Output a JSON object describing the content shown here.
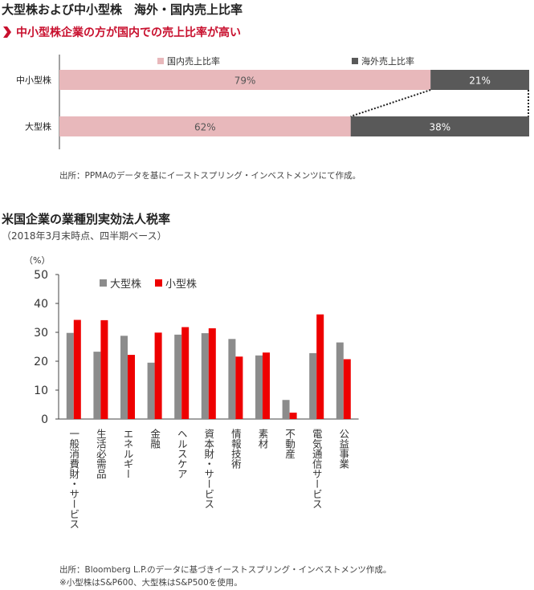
{
  "section1": {
    "title": "大型株および中小型株　海外・国内売上比率",
    "subtitle": "中小型株企業の方が国内での売上比率が高い",
    "source": "出所：PPMAのデータを基にイーストスプリング・インベストメンツにて作成。"
  },
  "section2": {
    "title": "米国企業の業種別実効法人税率",
    "subtitle": "（2018年3月末時点、四半期ベース）",
    "source": "出所：Bloomberg L.P.のデータに基づきイーストスプリング・インベストメンツ作成。",
    "note": "※小型株はS&P600、大型株はS&P500を使用。"
  },
  "colors": {
    "domestic": "#e8b8bb",
    "overseas": "#595959",
    "large": "#8c8c8c",
    "small": "#ee0000",
    "accent": "#c8102e"
  },
  "chart_data": [
    {
      "type": "bar",
      "orientation": "horizontal",
      "stacked": true,
      "categories": [
        "中小型株",
        "大型株"
      ],
      "series": [
        {
          "name": "国内売上比率",
          "values": [
            79,
            62
          ],
          "labels": [
            "79%",
            "62%"
          ]
        },
        {
          "name": "海外売上比率",
          "values": [
            21,
            38
          ],
          "labels": [
            "21%",
            "38%"
          ]
        }
      ],
      "xlim": [
        0,
        100
      ],
      "legend": "top"
    },
    {
      "type": "bar",
      "categories": [
        "一般消費財・サービス",
        "生活必需品",
        "エネルギー",
        "金融",
        "ヘルスケア",
        "資本財・サービス",
        "情報技術",
        "素材",
        "不動産",
        "電気通信サービス",
        "公益事業"
      ],
      "series": [
        {
          "name": "大型株",
          "values": [
            29.8,
            23.3,
            28.8,
            19.5,
            29.2,
            29.7,
            27.7,
            22.0,
            6.6,
            22.8,
            26.5
          ]
        },
        {
          "name": "小型株",
          "values": [
            34.3,
            34.2,
            22.2,
            29.9,
            31.8,
            31.4,
            21.6,
            23.0,
            2.2,
            36.2,
            20.7
          ]
        }
      ],
      "ylabel": "（%）",
      "ylim": [
        0,
        50
      ],
      "yticks": [
        "0",
        "10",
        "20",
        "30",
        "40",
        "50"
      ],
      "grid": false,
      "legend": "top-left"
    }
  ]
}
